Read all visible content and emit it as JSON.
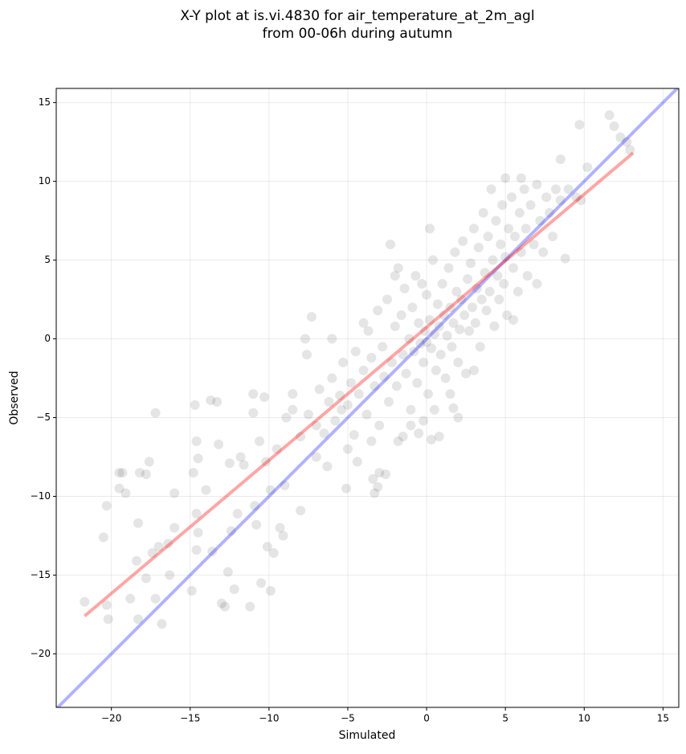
{
  "chart_data": {
    "type": "scatter",
    "title": [
      "X-Y plot at is.vi.4830 for air_temperature_at_2m_agl",
      "from 00-06h during autumn"
    ],
    "x_label": "Simulated",
    "y_label": "Observed",
    "xlim": [
      -23.5,
      16
    ],
    "ylim": [
      -23.4,
      15.9
    ],
    "xticks": [
      {
        "value": -20,
        "label": "−20"
      },
      {
        "value": -15,
        "label": "−15"
      },
      {
        "value": -10,
        "label": "−10"
      },
      {
        "value": -5,
        "label": "−5"
      },
      0,
      5,
      10,
      15
    ],
    "yticks": [
      {
        "value": -20,
        "label": "−20"
      },
      {
        "value": -15,
        "label": "−15"
      },
      {
        "value": -10,
        "label": "−10"
      },
      {
        "value": -5,
        "label": "−5"
      },
      0,
      5,
      10,
      15
    ],
    "grid": true,
    "points": {
      "color": "#000000",
      "opacity": 0.1,
      "x": [
        -21.7,
        -20.5,
        -20.3,
        -20.2,
        -20.3,
        -19.5,
        -19.3,
        -19.5,
        -19.1,
        -18.8,
        -18.4,
        -18.3,
        -18.3,
        -18.2,
        -17.8,
        -17.8,
        -17.6,
        -17.4,
        -17.2,
        -17.2,
        -17.0,
        -16.8,
        -16.4,
        -16.3,
        -16.0,
        -16.0,
        -14.9,
        -14.8,
        -14.7,
        -14.6,
        -14.5,
        -14.6,
        -14.6,
        -14.5,
        -14.0,
        -13.7,
        -13.6,
        -13.3,
        -13.2,
        -13.0,
        -12.8,
        -12.6,
        -12.5,
        -12.4,
        -12.2,
        -12.0,
        -11.8,
        -11.6,
        -11.2,
        -11.0,
        -11.0,
        -10.9,
        -10.8,
        -10.6,
        -10.5,
        -10.3,
        -10.2,
        -10.1,
        -9.7,
        -9.9,
        -9.9,
        -9.3,
        -9.1,
        -9.0,
        -8.9,
        -8.5,
        -8.0,
        -7.7,
        -7.6,
        -7.3,
        -6.3,
        -5.4,
        -5.1,
        -4.4,
        -3.4,
        -3.3,
        -3.1,
        -3.0,
        -2.6,
        -2.3,
        -1.8,
        -0.5,
        0.3,
        0.2,
        1.7,
        5.0,
        6.0,
        8.8,
        8.5,
        9.7,
        10.2,
        11.6,
        11.9,
        12.3,
        12.9,
        12.7,
        9.5,
        9.8,
        -8,
        -7.5,
        -7,
        -6.8,
        -6.5,
        -6.2,
        -6,
        -5.8,
        -5.5,
        -5.3,
        -5,
        -4.8,
        -4.6,
        -4.5,
        -4.3,
        -4,
        -3.8,
        -3.7,
        -3.5,
        -3.3,
        -3.1,
        -3,
        -2.8,
        -2.7,
        -2.5,
        -2.4,
        -2.2,
        -2,
        -1.9,
        -1.8,
        -1.6,
        -1.5,
        -1.4,
        -1.3,
        -1.1,
        -1,
        -0.9,
        -0.8,
        -0.7,
        -0.6,
        -0.5,
        -0.4,
        -0.3,
        -0.2,
        -0.1,
        0,
        0,
        0.1,
        0.2,
        0.3,
        0.4,
        0.5,
        0.6,
        0.7,
        0.8,
        0.9,
        1,
        1.1,
        1.2,
        1.3,
        1.4,
        1.5,
        1.6,
        1.7,
        1.8,
        1.9,
        2,
        2.1,
        2.2,
        2.3,
        2.4,
        2.5,
        2.6,
        2.7,
        2.8,
        2.9,
        3,
        3.1,
        3.2,
        3.3,
        3.4,
        3.5,
        3.6,
        3.7,
        3.8,
        3.9,
        4,
        4.1,
        4.2,
        4.3,
        4.4,
        4.5,
        4.6,
        4.7,
        4.8,
        4.9,
        5,
        5.1,
        5.2,
        5.4,
        5.5,
        5.6,
        5.8,
        5.9,
        6,
        6.2,
        6.3,
        6.4,
        6.6,
        6.8,
        7,
        7.2,
        7.4,
        7.6,
        7.8,
        8,
        8.2,
        8.5,
        9,
        2,
        -2,
        -4,
        -6,
        -8.5,
        -9.5,
        -7,
        -5,
        -3.5,
        -1,
        0.5,
        1.5,
        3,
        5.5,
        7,
        -1.5,
        -0.2,
        0.8
      ],
      "y": [
        -16.7,
        -12.6,
        -10.6,
        -17.8,
        -16.9,
        -8.5,
        -8.5,
        -9.5,
        -9.8,
        -16.5,
        -14.1,
        -11.7,
        -17.8,
        -8.5,
        -15.2,
        -8.6,
        -7.8,
        -13.6,
        -16.5,
        -4.7,
        -13.2,
        -18.1,
        -13.0,
        -15.0,
        -9.8,
        -12.0,
        -16.0,
        -8.5,
        -4.2,
        -6.5,
        -7.6,
        -11.1,
        -13.4,
        -12.3,
        -9.6,
        -3.9,
        -13.5,
        -4.0,
        -6.7,
        -16.8,
        -17.0,
        -14.8,
        -7.9,
        -12.2,
        -15.9,
        -11.1,
        -7.5,
        -8.0,
        -17.0,
        -3.5,
        -4.7,
        -10.6,
        -11.8,
        -6.5,
        -15.5,
        -3.7,
        -7.8,
        -13.2,
        -13.6,
        -9.6,
        -16.0,
        -12.0,
        -12.5,
        -9.3,
        -5.0,
        -3.5,
        -10.9,
        0.0,
        -1.0,
        1.4,
        -8.1,
        -4.5,
        -9.5,
        -7.8,
        -8.9,
        -9.8,
        -9.4,
        -8.5,
        -8.6,
        6.0,
        4.5,
        -6.0,
        -6.4,
        7.0,
        -4.4,
        10.2,
        10.2,
        5.1,
        11.4,
        13.6,
        10.9,
        14.2,
        13.5,
        12.8,
        12.0,
        12.5,
        9.0,
        8.8,
        -6.2,
        -4.8,
        -5.5,
        -3.2,
        -6,
        -4,
        -2.5,
        -5.2,
        -3.6,
        -1.5,
        -4.2,
        -2.8,
        -6.1,
        -0.8,
        -3.5,
        -2,
        -4.8,
        0.5,
        -1.2,
        -3,
        1.8,
        -5.5,
        -0.5,
        -2.4,
        2.5,
        -4,
        -1.5,
        0.8,
        -3,
        -6.5,
        1.5,
        -1,
        3.2,
        -2.2,
        0,
        -4.5,
        2,
        -0.8,
        4,
        -2.8,
        1,
        -0.3,
        3.5,
        -1.5,
        0.5,
        -0.2,
        2.8,
        -3.5,
        1.2,
        -0.6,
        5,
        0.3,
        -2,
        2.2,
        0.8,
        -1,
        3.5,
        1.5,
        -2.5,
        0.2,
        4.5,
        2,
        -0.5,
        1,
        5.5,
        3,
        -1.5,
        0.6,
        2.5,
        6.2,
        1.5,
        -2.2,
        3.8,
        0.5,
        4.8,
        2,
        7,
        1,
        3.2,
        5.8,
        -0.5,
        2.5,
        8,
        4.2,
        1.8,
        6.5,
        3,
        9.5,
        5,
        0.8,
        7.5,
        4,
        2.5,
        6,
        8.5,
        3.5,
        5.2,
        1.5,
        7,
        9,
        4.5,
        6.5,
        3,
        8,
        5.5,
        9.5,
        7,
        4,
        8.5,
        6,
        9.8,
        7.5,
        5.5,
        9,
        8,
        6.5,
        9.5,
        8.8,
        9.5,
        -5,
        4,
        1,
        0,
        -4.5,
        -7,
        -7.5,
        -7,
        -6.5,
        -5.5,
        -4.5,
        -3.5,
        -2,
        1.2,
        3.5,
        -6.2,
        -5.2,
        -6.2
      ]
    },
    "lines": [
      {
        "color": "#0000ff",
        "opacity": 0.3,
        "x": [
          -23.5,
          16
        ],
        "y": [
          -23.5,
          16
        ]
      },
      {
        "color": "#ff0000",
        "opacity": 0.35,
        "x": [
          -21.7,
          13.1
        ],
        "y": [
          -17.6,
          11.8
        ]
      }
    ]
  }
}
